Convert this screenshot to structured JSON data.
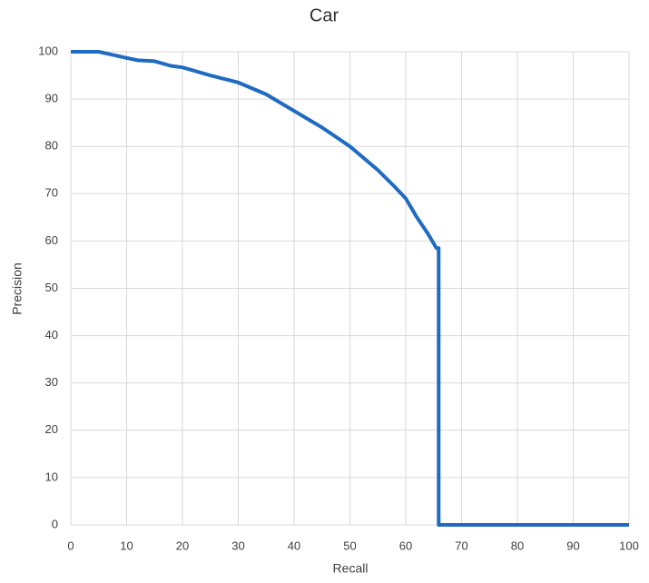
{
  "chart_data": {
    "type": "line",
    "title": "Car",
    "x_label": "Recall",
    "y_label": "Precision",
    "x": [
      0,
      5,
      10,
      12,
      15,
      18,
      20,
      25,
      30,
      35,
      40,
      45,
      50,
      55,
      58,
      60,
      62,
      64,
      65.5,
      65.9,
      65.9,
      80,
      100
    ],
    "series": [
      {
        "name": "Car",
        "color": "#1f6bc1",
        "values": [
          100,
          100,
          98.7,
          98.2,
          98,
          97,
          96.7,
          95,
          93.5,
          91,
          87.5,
          84,
          80,
          75,
          71.5,
          69,
          65,
          61.5,
          58.5,
          58.5,
          0,
          0,
          0
        ]
      }
    ],
    "xlim": [
      0,
      100
    ],
    "xticks": [
      0,
      10,
      20,
      30,
      40,
      50,
      60,
      70,
      80,
      90,
      100
    ],
    "ylim": [
      0,
      100
    ],
    "yticks": [
      0,
      10,
      20,
      30,
      40,
      50,
      60,
      70,
      80,
      90,
      100
    ],
    "grid": true
  }
}
